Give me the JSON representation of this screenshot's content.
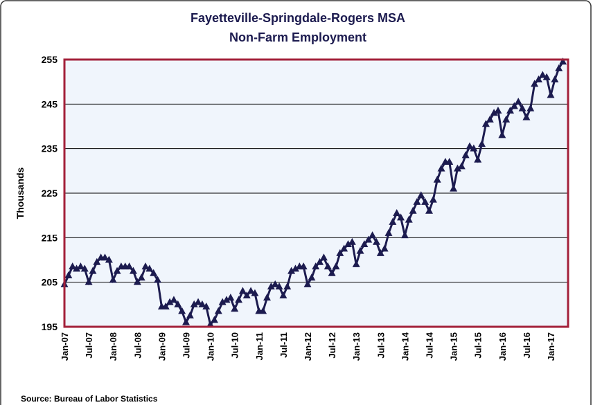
{
  "chart_data": {
    "type": "line",
    "title": [
      "Fayetteville-Springdale-Rogers MSA",
      "Non-Farm Employment"
    ],
    "y_label": "Thousands",
    "source": "Source: Bureau of Labor Statistics",
    "categories": [
      "Jan-07",
      null,
      null,
      null,
      null,
      null,
      "Jul-07",
      null,
      null,
      null,
      null,
      null,
      "Jan-08",
      null,
      null,
      null,
      null,
      null,
      "Jul-08",
      null,
      null,
      null,
      null,
      null,
      "Jan-09",
      null,
      null,
      null,
      null,
      null,
      "Jul-09",
      null,
      null,
      null,
      null,
      null,
      "Jan-10",
      null,
      null,
      null,
      null,
      null,
      "Jul-10",
      null,
      null,
      null,
      null,
      null,
      "Jan-11",
      null,
      null,
      null,
      null,
      null,
      "Jul-11",
      null,
      null,
      null,
      null,
      null,
      "Jan-12",
      null,
      null,
      null,
      null,
      null,
      "Jul-12",
      null,
      null,
      null,
      null,
      null,
      "Jan-13",
      null,
      null,
      null,
      null,
      null,
      "Jul-13",
      null,
      null,
      null,
      null,
      null,
      "Jan-14",
      null,
      null,
      null,
      null,
      null,
      "Jul-14",
      null,
      null,
      null,
      null,
      null,
      "Jan-15",
      null,
      null,
      null,
      null,
      null,
      "Jul-15",
      null,
      null,
      null,
      null,
      null,
      "Jan-16",
      null,
      null,
      null,
      null,
      null,
      "Jul-16",
      null,
      null,
      null,
      null,
      null,
      "Jan-17",
      null,
      null,
      null
    ],
    "series": [
      {
        "name": "Non-Farm Employment",
        "color": "#1c1b4f",
        "values": [
          204.5,
          206.5,
          208.5,
          208,
          208.5,
          208,
          205,
          207.5,
          209.5,
          210.5,
          210.5,
          210,
          205.5,
          207.5,
          208.5,
          208.5,
          208.5,
          207.5,
          205,
          206,
          208.5,
          208,
          207,
          205.5,
          199.5,
          199.5,
          200.5,
          201,
          200,
          198.5,
          196,
          197.5,
          200,
          200.5,
          200,
          199.5,
          195.5,
          196.5,
          198.5,
          200.5,
          201,
          201.5,
          199,
          201,
          203,
          202,
          203,
          202.5,
          198.5,
          198.5,
          201.5,
          204,
          204.5,
          204,
          202,
          204,
          207.5,
          208,
          208.5,
          208.5,
          204.5,
          206,
          208.5,
          209.5,
          210.5,
          208.5,
          207,
          208.5,
          211.5,
          212.5,
          213.5,
          214,
          209,
          212,
          213.5,
          214.5,
          215.5,
          214,
          211.5,
          212.5,
          216,
          218.5,
          220.5,
          219.5,
          215.5,
          219,
          221,
          223,
          224.5,
          223,
          221,
          223.5,
          228,
          230.5,
          232,
          232,
          226,
          230.5,
          231,
          233.5,
          235.5,
          235,
          232.5,
          236,
          240.5,
          241.5,
          243,
          243.5,
          238,
          241.5,
          243.5,
          244.5,
          245.5,
          244,
          242,
          244,
          249.5,
          250.5,
          251.5,
          251,
          247,
          250.5,
          253,
          254.5
        ]
      }
    ],
    "ylim": [
      195,
      255
    ],
    "yticks": [
      195,
      205,
      215,
      225,
      235,
      245,
      255
    ],
    "grid": true,
    "plot_background": "#f0f5fc",
    "plot_border": "#a3203a"
  }
}
